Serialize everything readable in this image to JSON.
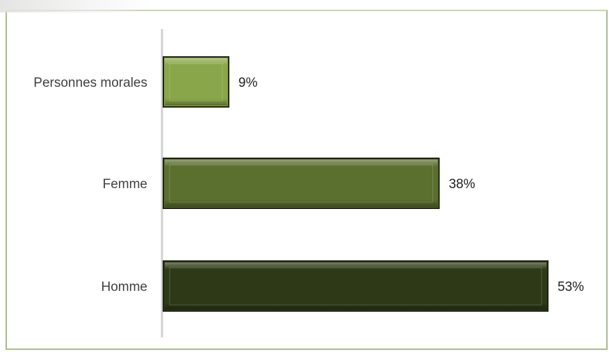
{
  "chart_data": {
    "type": "bar",
    "orientation": "horizontal",
    "categories": [
      "Personnes morales",
      "Femme",
      "Homme"
    ],
    "values": [
      9,
      38,
      53
    ],
    "value_labels": [
      "9%",
      "38%",
      "53%"
    ],
    "unit": "%",
    "xlim": [
      0,
      53
    ],
    "grid": false,
    "legend": "none",
    "colors": [
      "#8aa64a",
      "#5b6f2e",
      "#2e3a17"
    ]
  }
}
